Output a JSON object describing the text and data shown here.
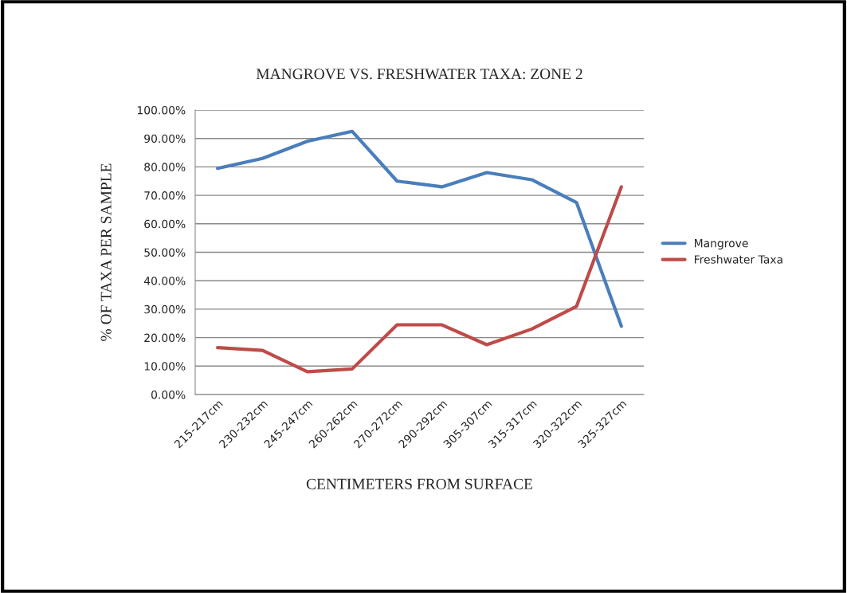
{
  "chart_data": {
    "type": "line",
    "title": "MANGROVE VS. FRESHWATER TAXA: ZONE 2",
    "xlabel": "CENTIMETERS FROM SURFACE",
    "ylabel": "% OF TAXA PER SAMPLE",
    "categories": [
      "215-217cm",
      "230-232cm",
      "245-247cm",
      "260-262cm",
      "270-272cm",
      "290-292cm",
      "305-307cm",
      "315-317cm",
      "320-322cm",
      "325-327cm"
    ],
    "series": [
      {
        "name": "Mangrove",
        "color": "#4a7ebb",
        "values": [
          79.5,
          83,
          89,
          92.5,
          75,
          73,
          78,
          75.5,
          67.5,
          24
        ]
      },
      {
        "name": "Freshwater Taxa",
        "color": "#be4b48",
        "values": [
          16.5,
          15.5,
          8,
          9,
          24.5,
          24.5,
          17.5,
          23,
          31,
          73
        ]
      }
    ],
    "ylim": [
      0,
      100
    ],
    "yticks": [
      {
        "value": 0,
        "label": "0.00%"
      },
      {
        "value": 10,
        "label": "10.00%"
      },
      {
        "value": 20,
        "label": "20.00%"
      },
      {
        "value": 30,
        "label": "30.00%"
      },
      {
        "value": 40,
        "label": "40.00%"
      },
      {
        "value": 50,
        "label": "50.00%"
      },
      {
        "value": 60,
        "label": "60.00%"
      },
      {
        "value": 70,
        "label": "70.00%"
      },
      {
        "value": 80,
        "label": "80.00%"
      },
      {
        "value": 90,
        "label": "90.00%"
      },
      {
        "value": 100,
        "label": "100.00%"
      }
    ],
    "grid": "y",
    "legend": "right",
    "marker": "none",
    "line_style": "solid"
  }
}
